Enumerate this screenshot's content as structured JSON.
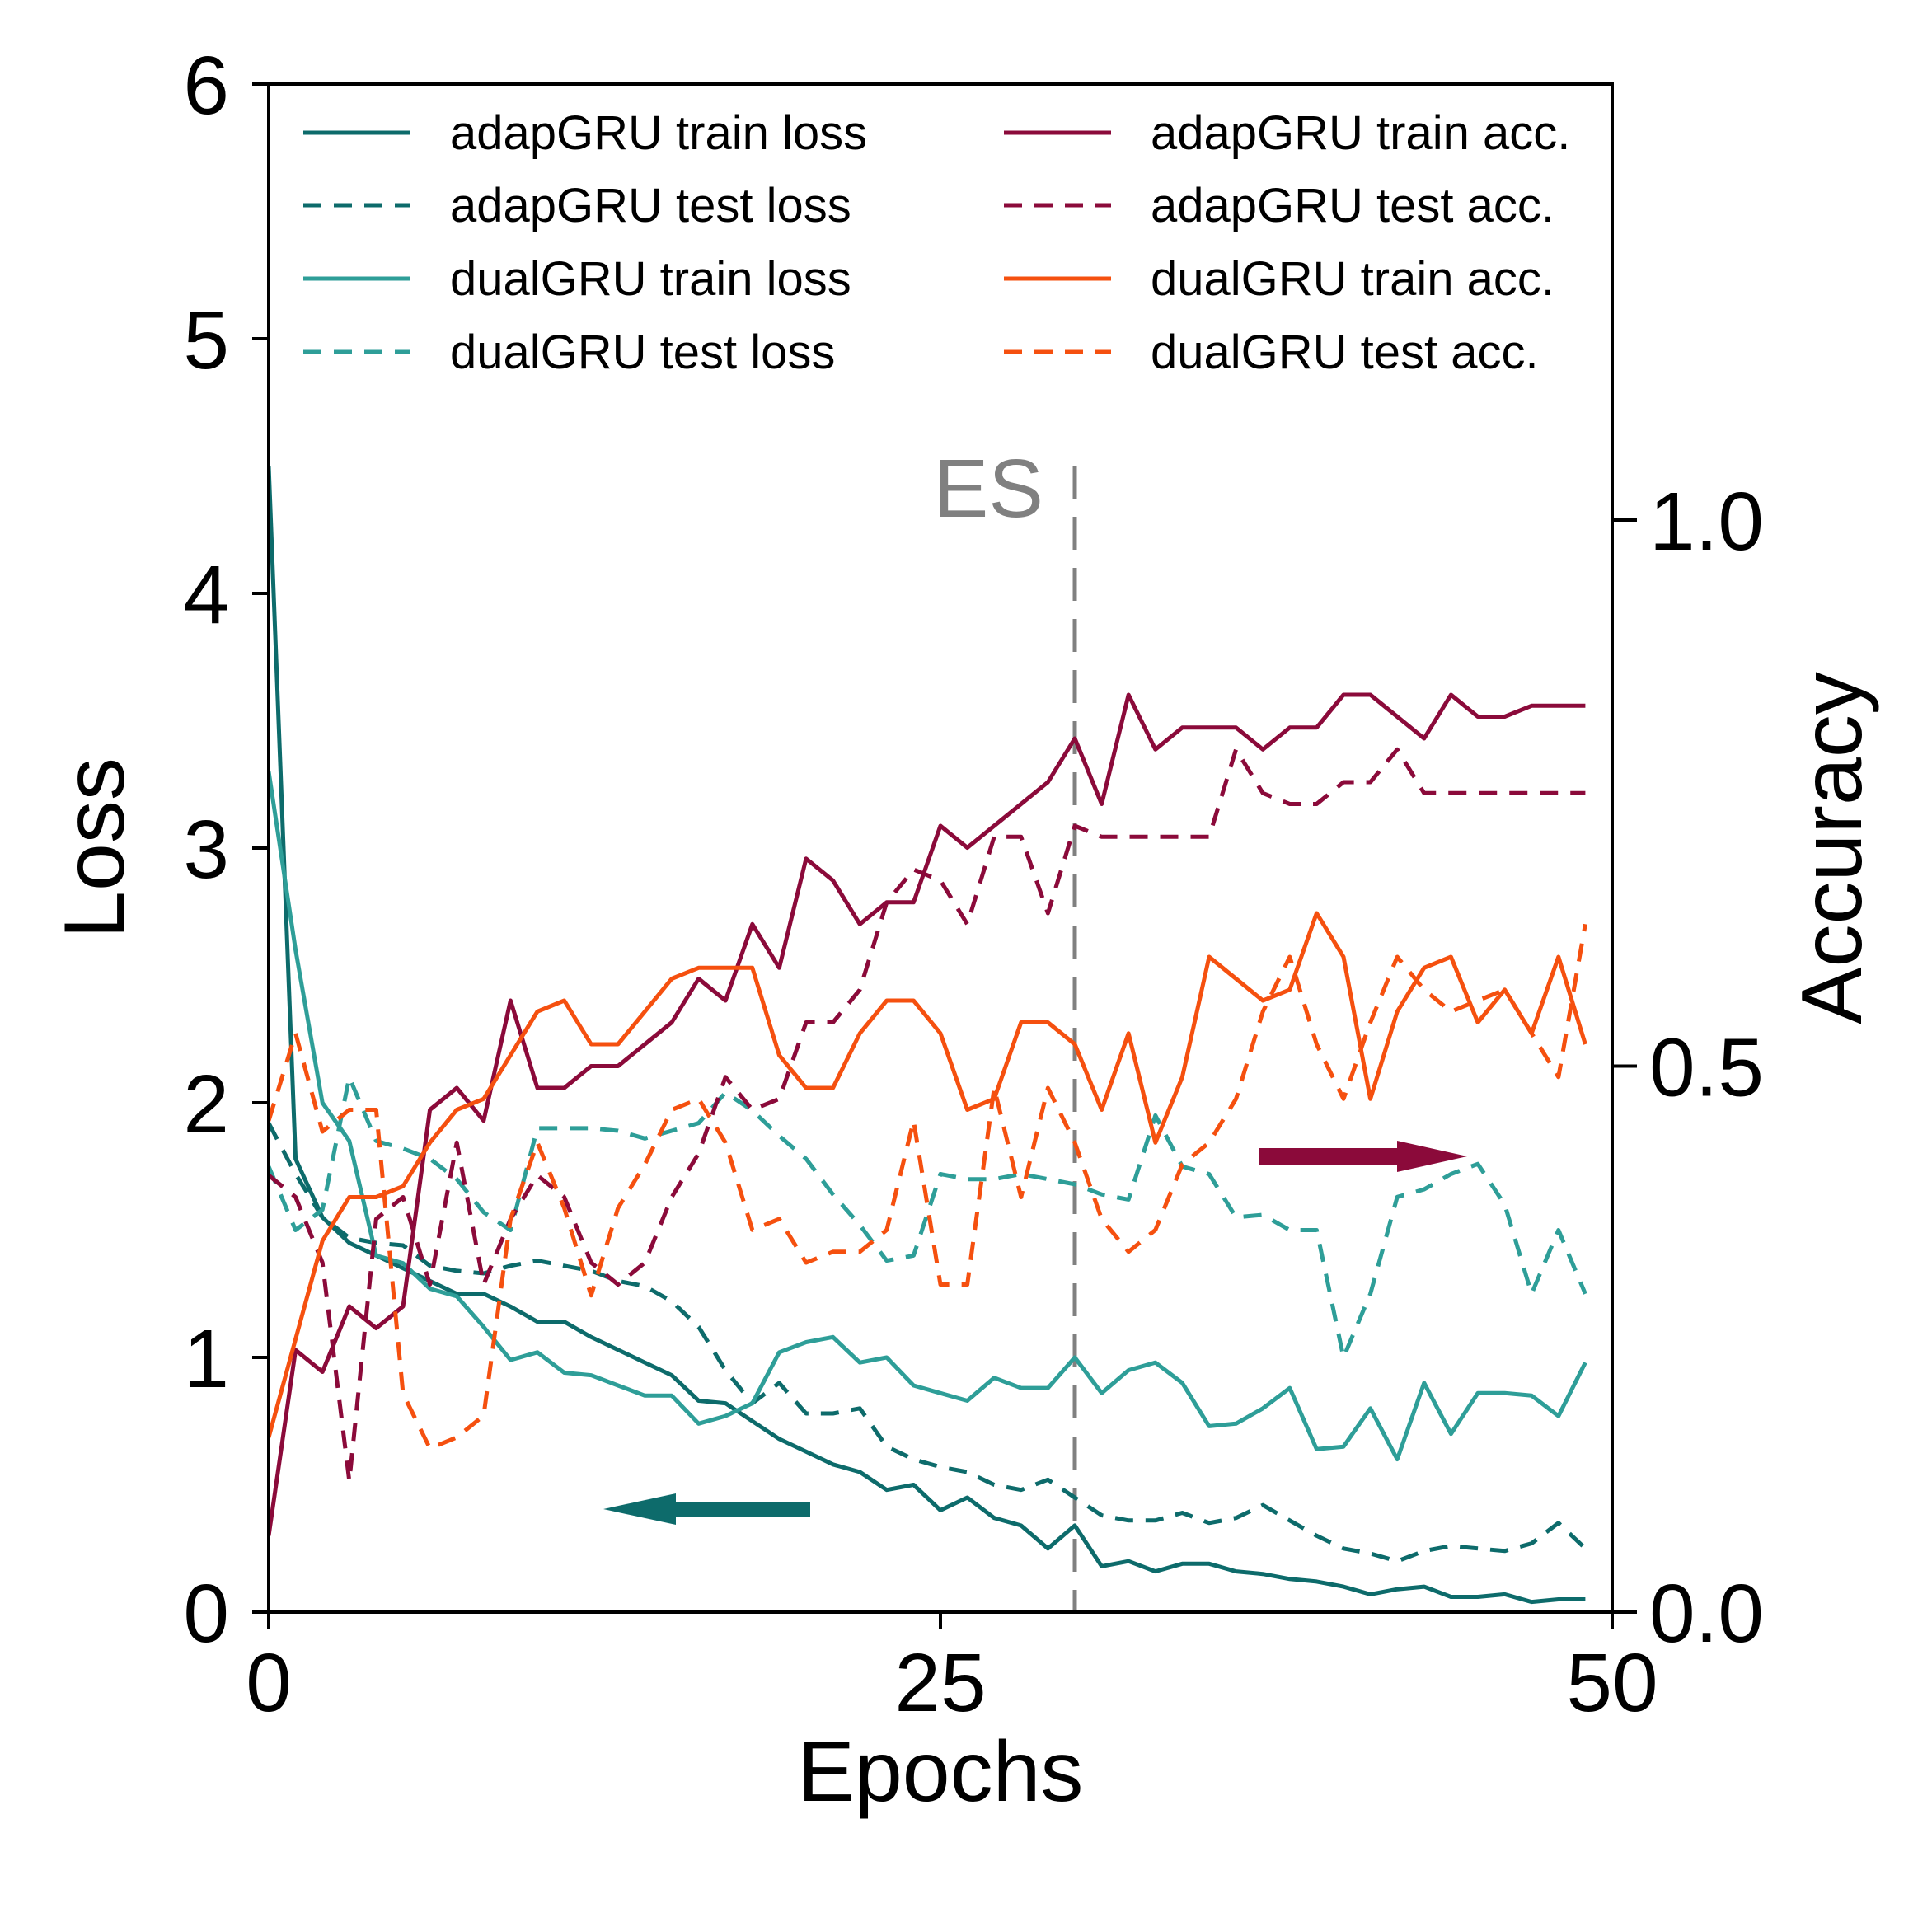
{
  "chart_data": {
    "type": "line",
    "xlabel": "Epochs",
    "ylabel": "Loss",
    "y2label": "Accuracy",
    "xlim": [
      0,
      50
    ],
    "ylim": [
      0,
      6
    ],
    "y2lim": [
      0,
      1.0
    ],
    "xticks": [
      "0",
      "25",
      "50"
    ],
    "yticks": [
      "0",
      "1",
      "2",
      "3",
      "4",
      "5",
      "6"
    ],
    "y2ticks": [
      "0.0",
      "0.5",
      "1.0"
    ],
    "grid": false,
    "legend_placement": "top, two columns",
    "annotation": "ES",
    "early_stop_epoch": 30,
    "series": [
      {
        "name": "adapGRU train loss",
        "axis": "left",
        "style": "solid",
        "color": "#0d6b6b",
        "x": [
          0,
          1,
          2,
          3,
          4,
          5,
          6,
          7,
          8,
          9,
          10,
          11,
          12,
          13,
          14,
          15,
          16,
          17,
          18,
          19,
          20,
          21,
          22,
          23,
          24,
          25,
          26,
          27,
          28,
          29,
          30,
          31,
          32,
          33,
          34,
          35,
          36,
          37,
          38,
          39,
          40,
          41,
          42,
          43,
          44,
          45,
          46,
          47,
          48,
          49
        ],
        "values": [
          4.5,
          1.78,
          1.55,
          1.45,
          1.4,
          1.35,
          1.3,
          1.25,
          1.25,
          1.2,
          1.14,
          1.14,
          1.08,
          1.03,
          0.98,
          0.93,
          0.83,
          0.82,
          0.75,
          0.68,
          0.63,
          0.58,
          0.55,
          0.48,
          0.5,
          0.4,
          0.45,
          0.37,
          0.34,
          0.25,
          0.34,
          0.18,
          0.2,
          0.16,
          0.19,
          0.19,
          0.16,
          0.15,
          0.13,
          0.12,
          0.1,
          0.07,
          0.09,
          0.1,
          0.06,
          0.06,
          0.07,
          0.04,
          0.05,
          0.05
        ]
      },
      {
        "name": "adapGRU test loss",
        "axis": "left",
        "style": "dashed",
        "color": "#0d6b6b",
        "x": [
          0,
          1,
          2,
          3,
          4,
          5,
          6,
          7,
          8,
          9,
          10,
          11,
          12,
          13,
          14,
          15,
          16,
          17,
          18,
          19,
          20,
          21,
          22,
          23,
          24,
          25,
          26,
          27,
          28,
          29,
          30,
          31,
          32,
          33,
          34,
          35,
          36,
          37,
          38,
          39,
          40,
          41,
          42,
          43,
          44,
          45,
          46,
          47,
          48,
          49
        ],
        "values": [
          1.92,
          1.72,
          1.55,
          1.47,
          1.45,
          1.44,
          1.36,
          1.34,
          1.33,
          1.36,
          1.38,
          1.36,
          1.34,
          1.3,
          1.28,
          1.22,
          1.12,
          0.95,
          0.82,
          0.9,
          0.78,
          0.78,
          0.8,
          0.65,
          0.6,
          0.57,
          0.55,
          0.5,
          0.48,
          0.52,
          0.45,
          0.38,
          0.36,
          0.36,
          0.39,
          0.35,
          0.37,
          0.42,
          0.36,
          0.3,
          0.25,
          0.23,
          0.2,
          0.24,
          0.26,
          0.25,
          0.24,
          0.27,
          0.35,
          0.25
        ]
      },
      {
        "name": "dualGRU train loss",
        "axis": "left",
        "style": "solid",
        "color": "#2e9e98",
        "x": [
          0,
          1,
          2,
          3,
          4,
          5,
          6,
          7,
          8,
          9,
          10,
          11,
          12,
          13,
          14,
          15,
          16,
          17,
          18,
          19,
          20,
          21,
          22,
          23,
          24,
          25,
          26,
          27,
          28,
          29,
          30,
          31,
          32,
          33,
          34,
          35,
          36,
          37,
          38,
          39,
          40,
          41,
          42,
          43,
          44,
          45,
          46,
          47,
          48,
          49
        ],
        "values": [
          3.3,
          2.6,
          2.0,
          1.85,
          1.4,
          1.37,
          1.27,
          1.24,
          1.12,
          0.99,
          1.02,
          0.94,
          0.93,
          0.89,
          0.85,
          0.85,
          0.74,
          0.77,
          0.82,
          1.02,
          1.06,
          1.08,
          0.98,
          1.0,
          0.89,
          0.86,
          0.83,
          0.92,
          0.88,
          0.88,
          1.0,
          0.86,
          0.95,
          0.98,
          0.9,
          0.73,
          0.74,
          0.8,
          0.88,
          0.64,
          0.65,
          0.8,
          0.6,
          0.9,
          0.7,
          0.86,
          0.86,
          0.85,
          0.77,
          0.98
        ]
      },
      {
        "name": "dualGRU test loss",
        "axis": "left",
        "style": "dashed",
        "color": "#2e9e98",
        "x": [
          0,
          1,
          2,
          3,
          4,
          5,
          6,
          7,
          8,
          9,
          10,
          11,
          12,
          13,
          14,
          15,
          16,
          17,
          18,
          19,
          20,
          21,
          22,
          23,
          24,
          25,
          26,
          27,
          28,
          29,
          30,
          31,
          32,
          33,
          34,
          35,
          36,
          37,
          38,
          39,
          40,
          41,
          42,
          43,
          44,
          45,
          46,
          47,
          48,
          49
        ],
        "values": [
          1.75,
          1.5,
          1.58,
          2.1,
          1.85,
          1.82,
          1.78,
          1.7,
          1.57,
          1.5,
          1.9,
          1.9,
          1.9,
          1.89,
          1.86,
          1.89,
          1.92,
          2.04,
          1.97,
          1.87,
          1.78,
          1.64,
          1.52,
          1.38,
          1.4,
          1.72,
          1.7,
          1.7,
          1.72,
          1.7,
          1.68,
          1.64,
          1.62,
          1.95,
          1.75,
          1.72,
          1.55,
          1.56,
          1.5,
          1.5,
          1.0,
          1.25,
          1.63,
          1.66,
          1.72,
          1.76,
          1.6,
          1.25,
          1.5,
          1.25
        ]
      },
      {
        "name": "adapGRU train acc.",
        "axis": "right",
        "style": "solid",
        "color": "#8b0a3a",
        "x": [
          0,
          1,
          2,
          3,
          4,
          5,
          6,
          7,
          8,
          9,
          10,
          11,
          12,
          13,
          14,
          15,
          16,
          17,
          18,
          19,
          20,
          21,
          22,
          23,
          24,
          25,
          26,
          27,
          28,
          29,
          30,
          31,
          32,
          33,
          34,
          35,
          36,
          37,
          38,
          39,
          40,
          41,
          42,
          43,
          44,
          45,
          46,
          47,
          48,
          49
        ],
        "values": [
          0.07,
          0.24,
          0.22,
          0.28,
          0.26,
          0.28,
          0.46,
          0.48,
          0.45,
          0.56,
          0.48,
          0.48,
          0.5,
          0.5,
          0.52,
          0.54,
          0.58,
          0.56,
          0.63,
          0.59,
          0.69,
          0.67,
          0.63,
          0.65,
          0.65,
          0.72,
          0.7,
          0.72,
          0.74,
          0.76,
          0.8,
          0.74,
          0.84,
          0.79,
          0.81,
          0.81,
          0.81,
          0.79,
          0.81,
          0.81,
          0.84,
          0.84,
          0.82,
          0.8,
          0.84,
          0.82,
          0.82,
          0.83,
          0.83,
          0.83
        ]
      },
      {
        "name": "adapGRU test acc.",
        "axis": "right",
        "style": "dashed",
        "color": "#8b0a3a",
        "x": [
          0,
          1,
          2,
          3,
          4,
          5,
          6,
          7,
          8,
          9,
          10,
          11,
          12,
          13,
          14,
          15,
          16,
          17,
          18,
          19,
          20,
          21,
          22,
          23,
          24,
          25,
          26,
          27,
          28,
          29,
          30,
          31,
          32,
          33,
          34,
          35,
          36,
          37,
          38,
          39,
          40,
          41,
          42,
          43,
          44,
          45,
          46,
          47,
          48,
          49
        ],
        "values": [
          0.4,
          0.38,
          0.32,
          0.12,
          0.36,
          0.38,
          0.3,
          0.43,
          0.3,
          0.36,
          0.4,
          0.38,
          0.32,
          0.3,
          0.32,
          0.38,
          0.42,
          0.49,
          0.46,
          0.47,
          0.54,
          0.54,
          0.57,
          0.65,
          0.68,
          0.67,
          0.63,
          0.71,
          0.71,
          0.64,
          0.72,
          0.71,
          0.71,
          0.71,
          0.71,
          0.71,
          0.79,
          0.75,
          0.74,
          0.74,
          0.76,
          0.76,
          0.79,
          0.75,
          0.75,
          0.75,
          0.75,
          0.75,
          0.75,
          0.75
        ]
      },
      {
        "name": "dualGRU train acc.",
        "axis": "right",
        "style": "solid",
        "color": "#f5500f",
        "x": [
          0,
          1,
          2,
          3,
          4,
          5,
          6,
          7,
          8,
          9,
          10,
          11,
          12,
          13,
          14,
          15,
          16,
          17,
          18,
          19,
          20,
          21,
          22,
          23,
          24,
          25,
          26,
          27,
          28,
          29,
          30,
          31,
          32,
          33,
          34,
          35,
          36,
          37,
          38,
          39,
          40,
          41,
          42,
          43,
          44,
          45,
          46,
          47,
          48,
          49
        ],
        "values": [
          0.16,
          0.25,
          0.34,
          0.38,
          0.38,
          0.39,
          0.43,
          0.46,
          0.47,
          0.51,
          0.55,
          0.56,
          0.52,
          0.52,
          0.55,
          0.58,
          0.59,
          0.59,
          0.59,
          0.51,
          0.48,
          0.48,
          0.53,
          0.56,
          0.56,
          0.53,
          0.46,
          0.47,
          0.54,
          0.54,
          0.52,
          0.46,
          0.53,
          0.43,
          0.49,
          0.6,
          0.58,
          0.56,
          0.57,
          0.64,
          0.6,
          0.47,
          0.55,
          0.59,
          0.6,
          0.54,
          0.57,
          0.53,
          0.6,
          0.52
        ]
      },
      {
        "name": "dualGRU test acc.",
        "axis": "right",
        "style": "dashed",
        "color": "#f5500f",
        "x": [
          0,
          1,
          2,
          3,
          4,
          5,
          6,
          7,
          8,
          9,
          10,
          11,
          12,
          13,
          14,
          15,
          16,
          17,
          18,
          19,
          20,
          21,
          22,
          23,
          24,
          25,
          26,
          27,
          28,
          29,
          30,
          31,
          32,
          33,
          34,
          35,
          36,
          37,
          38,
          39,
          40,
          41,
          42,
          43,
          44,
          45,
          46,
          47,
          48,
          49
        ],
        "values": [
          0.45,
          0.53,
          0.44,
          0.46,
          0.46,
          0.2,
          0.15,
          0.16,
          0.18,
          0.36,
          0.43,
          0.37,
          0.29,
          0.37,
          0.41,
          0.46,
          0.47,
          0.43,
          0.35,
          0.36,
          0.32,
          0.33,
          0.33,
          0.35,
          0.45,
          0.3,
          0.3,
          0.48,
          0.38,
          0.48,
          0.43,
          0.36,
          0.33,
          0.35,
          0.41,
          0.43,
          0.47,
          0.55,
          0.6,
          0.52,
          0.47,
          0.54,
          0.6,
          0.57,
          0.55,
          0.56,
          0.57,
          0.53,
          0.49,
          0.63
        ]
      }
    ]
  }
}
